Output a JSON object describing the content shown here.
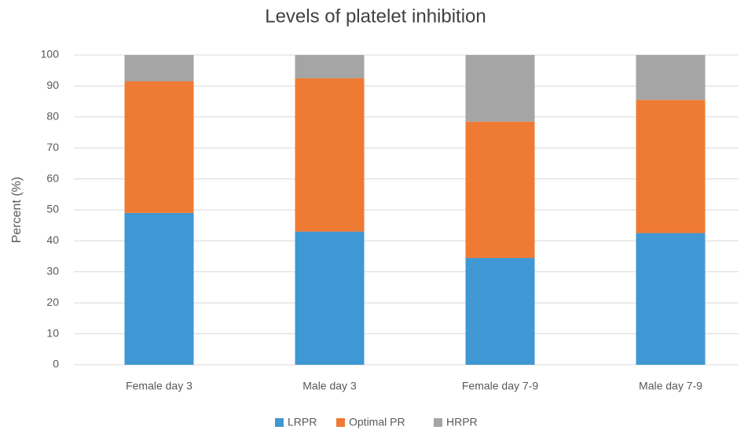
{
  "chart_data": {
    "type": "stacked_bar",
    "title": "Levels of platelet inhibition",
    "y_label": "Percent (%)",
    "categories": [
      "Female day 3",
      "Male day 3",
      "Female day 7-9",
      "Male day 7-9"
    ],
    "series": [
      {
        "name": "LRPR",
        "color": "#3f97d3",
        "values": [
          49,
          43,
          34.5,
          42.5
        ]
      },
      {
        "name": "Optimal PR",
        "color": "#ef7a33",
        "values": [
          42.5,
          49.5,
          44,
          43
        ]
      },
      {
        "name": "HRPR",
        "color": "#a5a5a5",
        "values": [
          8.5,
          7.5,
          21.5,
          14.5
        ]
      }
    ],
    "ylim": [
      0,
      100
    ],
    "yticks": [
      0,
      10,
      20,
      30,
      40,
      50,
      60,
      70,
      80,
      90,
      100
    ],
    "grid": true,
    "legend": "bottom"
  }
}
